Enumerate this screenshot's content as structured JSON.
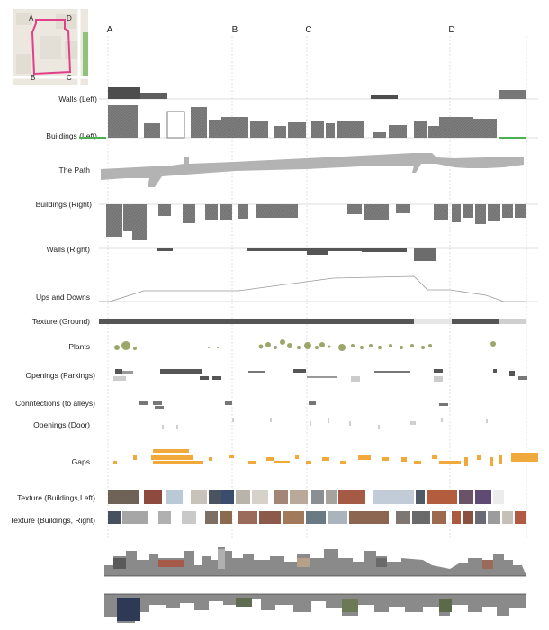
{
  "map": {
    "points": [
      "A",
      "B",
      "C",
      "D"
    ]
  },
  "markers": [
    {
      "label": "A"
    },
    {
      "label": "B"
    },
    {
      "label": "C"
    },
    {
      "label": "D"
    }
  ],
  "rows": {
    "walls_left": "Walls (Left)",
    "buildings_left": "Buildings (Left)",
    "path": "The Path",
    "buildings_right": "Buildings (Right)",
    "walls_right": "Walls (Right)",
    "ups_downs": "Ups and Downs",
    "texture_ground": "Texture (Ground)",
    "plants": "Plants",
    "openings_parking": "Openings (Parkings)",
    "connections": "Conntections (to alleys)",
    "openings_door": "Openings (Door)",
    "gaps": "Gaps",
    "texture_bldg_left": "Texture (Buildings,Left)",
    "texture_bldg_right": "Texture (Buildings, Right)"
  },
  "colors": {
    "bar_dark": "#555555",
    "bar_mid": "#8a8a8a",
    "path": "#b3b3b3",
    "green": "#4caf50",
    "plants": "#9aa66a",
    "gaps": "#f2a93b",
    "route": "#e0408a",
    "guide": "#cfcfcf"
  }
}
